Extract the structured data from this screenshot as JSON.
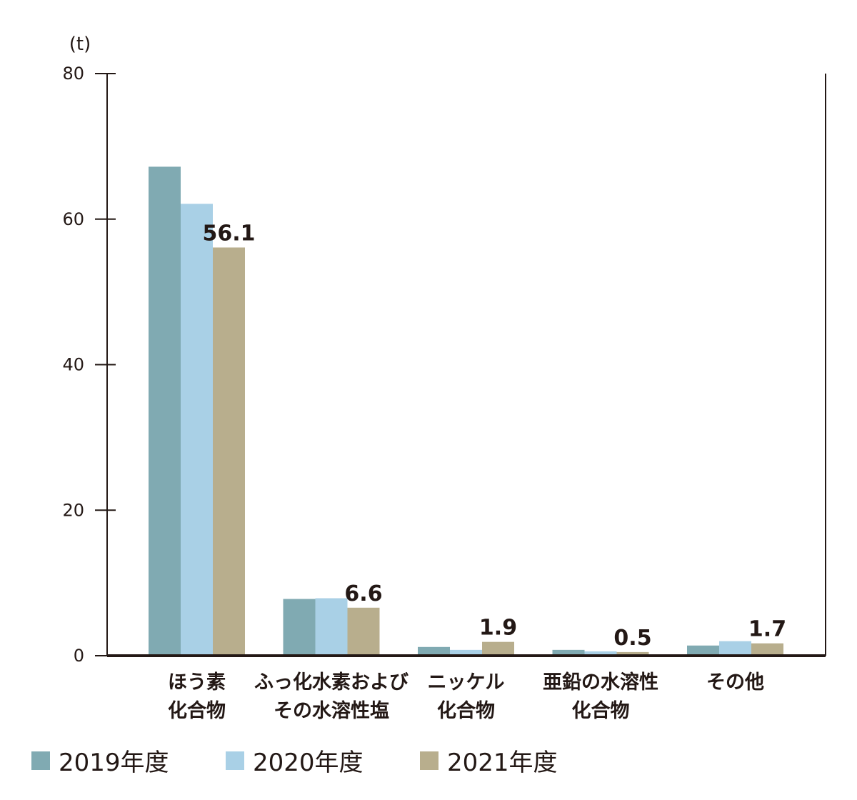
{
  "chart_data": {
    "type": "bar",
    "unit_label": "(t)",
    "ylim": [
      0,
      80
    ],
    "yticks": [
      "0",
      "20",
      "40",
      "60",
      "80"
    ],
    "categories": [
      [
        "ほう素",
        "化合物"
      ],
      [
        "ふっ化水素および",
        "その水溶性塩"
      ],
      [
        "ニッケル",
        "化合物"
      ],
      [
        "亜鉛の水溶性",
        "化合物"
      ],
      [
        "その他"
      ]
    ],
    "series": [
      {
        "name": "2019年度",
        "color": "#80aab2",
        "values": [
          67.2,
          7.8,
          1.2,
          0.8,
          1.4
        ]
      },
      {
        "name": "2020年度",
        "color": "#a9d0e6",
        "values": [
          62.1,
          7.9,
          0.8,
          0.6,
          2.0
        ]
      },
      {
        "name": "2021年度",
        "color": "#b8ae8d",
        "values": [
          56.1,
          6.6,
          1.9,
          0.5,
          1.7
        ]
      }
    ],
    "data_labels": [
      "56.1",
      "6.6",
      "1.9",
      "0.5",
      "1.7"
    ],
    "legend_position": "bottom",
    "grid": false
  }
}
